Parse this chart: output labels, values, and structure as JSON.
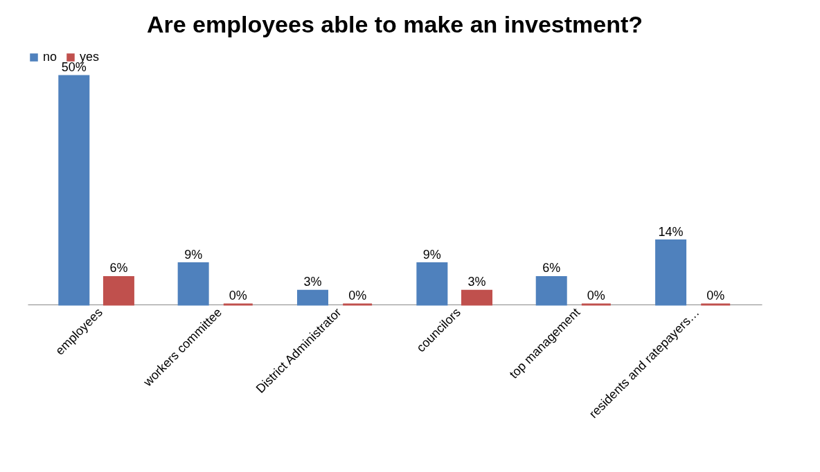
{
  "chart_data": {
    "type": "bar",
    "title": "Are employees able to make an investment?",
    "categories": [
      "employees",
      "workers committee",
      "District Administrator",
      "councilors",
      "top management",
      "residents and ratepayers…"
    ],
    "series": [
      {
        "name": "no",
        "color": "#4f81bd",
        "values": [
          50,
          9,
          3,
          9,
          6,
          14
        ],
        "value_labels": [
          "50%",
          "9%",
          "3%",
          "9%",
          "6%",
          "14%"
        ]
      },
      {
        "name": "yes",
        "color": "#c0504d",
        "values": [
          6,
          0,
          0,
          3,
          0,
          0
        ],
        "value_labels": [
          "6%",
          "0%",
          "0%",
          "3%",
          "0%",
          "0%"
        ]
      }
    ],
    "legend": "top",
    "grid": false
  }
}
